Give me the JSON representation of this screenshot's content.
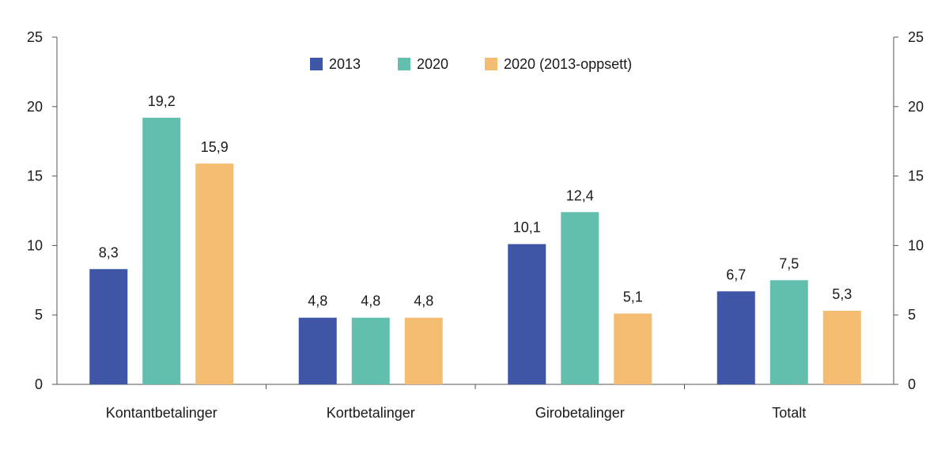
{
  "chart_data": {
    "type": "bar",
    "title": "",
    "xlabel": "",
    "ylabel": "",
    "categories": [
      "Kontantbetalinger",
      "Kortbetalinger",
      "Girobetalinger",
      "Totalt"
    ],
    "series": [
      {
        "name": "2013",
        "color": "#3f56a6",
        "values": [
          8.3,
          4.8,
          10.1,
          6.7
        ],
        "labels": [
          "8,3",
          "4,8",
          "10,1",
          "6,7"
        ]
      },
      {
        "name": "2020",
        "color": "#63bfad",
        "values": [
          19.2,
          4.8,
          12.4,
          7.5
        ],
        "labels": [
          "19,2",
          "4,8",
          "12,4",
          "7,5"
        ]
      },
      {
        "name": "2020 (2013-oppsett)",
        "color": "#f4bd72",
        "values": [
          15.9,
          4.8,
          5.1,
          5.3
        ],
        "labels": [
          "15,9",
          "4,8",
          "5,1",
          "5,3"
        ]
      }
    ],
    "ylim": [
      0,
      25
    ],
    "yticks": [
      0,
      5,
      10,
      15,
      20,
      25
    ],
    "ytick_labels": [
      "0",
      "5",
      "10",
      "15",
      "20",
      "25"
    ],
    "secondary_axis": {
      "ylim": [
        0,
        25
      ],
      "ytick_labels": [
        "0",
        "5",
        "10",
        "15",
        "20",
        "25"
      ]
    },
    "grid": false,
    "legend": {
      "placement": "top-center",
      "orientation": "horizontal"
    }
  }
}
